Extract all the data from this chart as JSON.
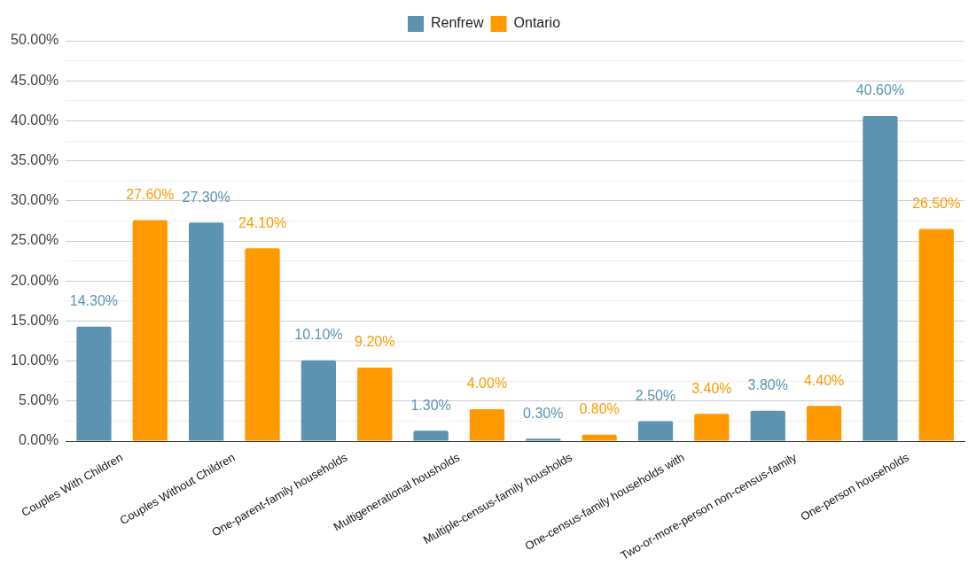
{
  "chart_data": {
    "type": "bar",
    "categories": [
      "Couples With Children",
      "Couples Without Children",
      "One-parent-family households",
      "Multigenerational housholds",
      "Multiple-census-family housholds",
      "One-census-family households with",
      "Two-or-more-person non-census-family",
      "One-person households"
    ],
    "series": [
      {
        "name": "Renfrew",
        "color": "#5b93b0",
        "values": [
          14.3,
          27.3,
          10.1,
          1.3,
          0.3,
          2.5,
          3.8,
          40.6
        ],
        "value_labels": [
          "14.30%",
          "27.30%",
          "10.10%",
          "1.30%",
          "0.30%",
          "2.50%",
          "3.80%",
          "40.60%"
        ]
      },
      {
        "name": "Ontario",
        "color": "#ff9900",
        "values": [
          27.6,
          24.1,
          9.2,
          4.0,
          0.8,
          3.4,
          4.4,
          26.5
        ],
        "value_labels": [
          "27.60%",
          "24.10%",
          "9.20%",
          "4.00%",
          "0.80%",
          "3.40%",
          "4.40%",
          "26.50%"
        ]
      }
    ],
    "ylim": [
      0,
      50
    ],
    "yticks": [
      {
        "value": 0,
        "label": "0.00%"
      },
      {
        "value": 2.5,
        "label": null
      },
      {
        "value": 5,
        "label": "5.00%"
      },
      {
        "value": 7.5,
        "label": null
      },
      {
        "value": 10,
        "label": "10.00%"
      },
      {
        "value": 12.5,
        "label": null
      },
      {
        "value": 15,
        "label": "15.00%"
      },
      {
        "value": 17.5,
        "label": null
      },
      {
        "value": 20,
        "label": "20.00%"
      },
      {
        "value": 22.5,
        "label": null
      },
      {
        "value": 25,
        "label": "25.00%"
      },
      {
        "value": 27.5,
        "label": null
      },
      {
        "value": 30,
        "label": "30.00%"
      },
      {
        "value": 32.5,
        "label": null
      },
      {
        "value": 35,
        "label": "35.00%"
      },
      {
        "value": 37.5,
        "label": null
      },
      {
        "value": 40,
        "label": "40.00%"
      },
      {
        "value": 42.5,
        "label": null
      },
      {
        "value": 45,
        "label": "45.00%"
      },
      {
        "value": 47.5,
        "label": null
      },
      {
        "value": 50,
        "label": "50.00%"
      }
    ],
    "grid": "y",
    "legend": "top"
  }
}
